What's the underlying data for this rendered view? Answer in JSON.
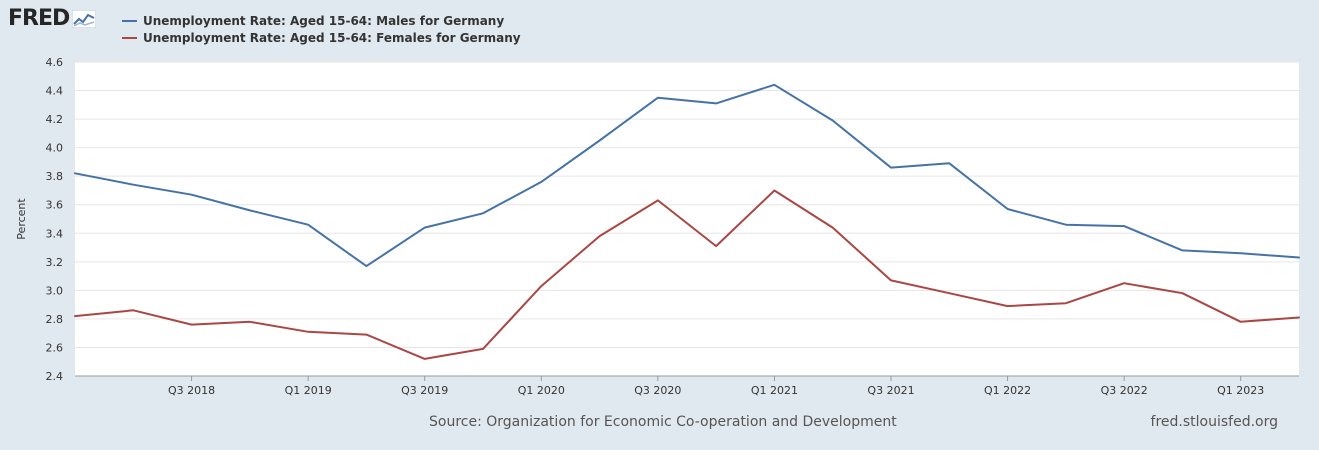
{
  "logo": {
    "text": "FRED"
  },
  "footer": {
    "source": "Source: Organization for Economic Co-operation and Development",
    "site": "fred.stlouisfed.org"
  },
  "chart_data": {
    "type": "line",
    "ylabel": "Percent",
    "xlabel": "",
    "ylim": [
      2.4,
      4.6
    ],
    "y_ticks": [
      "2.4",
      "2.6",
      "2.8",
      "3.0",
      "3.2",
      "3.4",
      "3.6",
      "3.8",
      "4.0",
      "4.2",
      "4.4",
      "4.6"
    ],
    "x": [
      "Q1 2018",
      "Q2 2018",
      "Q3 2018",
      "Q4 2018",
      "Q1 2019",
      "Q2 2019",
      "Q3 2019",
      "Q4 2019",
      "Q1 2020",
      "Q2 2020",
      "Q3 2020",
      "Q4 2020",
      "Q1 2021",
      "Q2 2021",
      "Q3 2021",
      "Q4 2021",
      "Q1 2022",
      "Q2 2022",
      "Q3 2022",
      "Q4 2022",
      "Q1 2023",
      "Q2 2023"
    ],
    "x_tick_labels": [
      "Q3 2018",
      "Q1 2019",
      "Q3 2019",
      "Q1 2020",
      "Q3 2020",
      "Q1 2021",
      "Q3 2021",
      "Q1 2022",
      "Q3 2022",
      "Q1 2023"
    ],
    "grid": true,
    "legend_position": "top-left",
    "series": [
      {
        "name": "Unemployment Rate: Aged 15-64: Males for Germany",
        "color": "#4572a7",
        "values": [
          3.82,
          3.74,
          3.67,
          3.56,
          3.46,
          3.17,
          3.44,
          3.54,
          3.76,
          4.05,
          4.35,
          4.31,
          4.44,
          4.19,
          3.86,
          3.89,
          3.57,
          3.46,
          3.45,
          3.28,
          3.26,
          3.23
        ]
      },
      {
        "name": "Unemployment Rate: Aged 15-64: Females for Germany",
        "color": "#aa4643",
        "values": [
          2.82,
          2.86,
          2.76,
          2.78,
          2.71,
          2.69,
          2.52,
          2.59,
          3.03,
          3.38,
          3.63,
          3.31,
          3.7,
          3.44,
          3.07,
          2.98,
          2.89,
          2.91,
          3.05,
          2.98,
          2.78,
          2.81
        ]
      }
    ]
  }
}
